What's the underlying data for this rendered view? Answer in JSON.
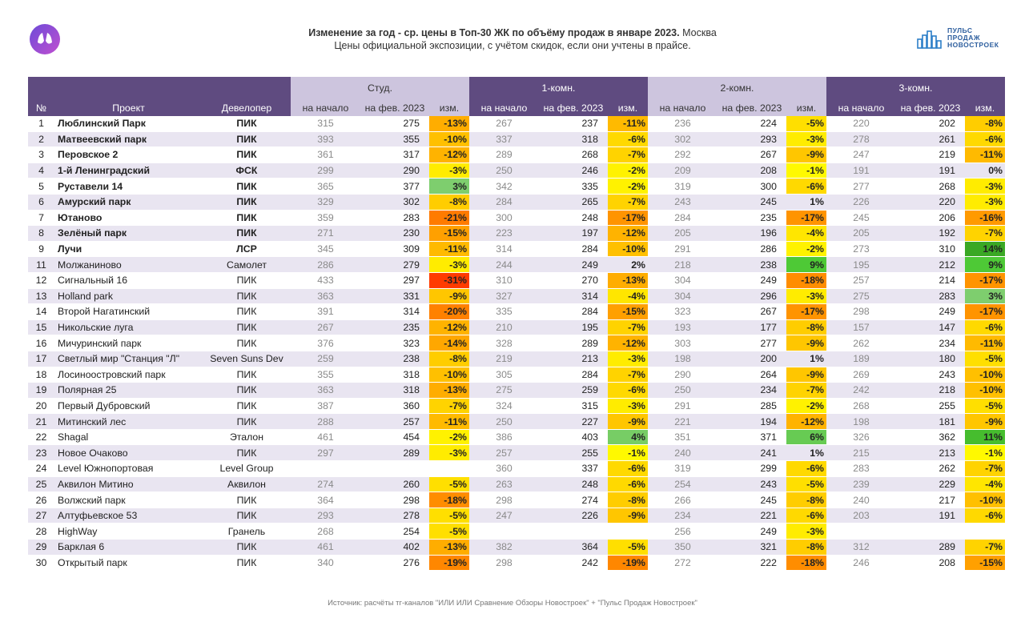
{
  "header": {
    "title": "Изменение за год - ср. цены в Топ-30 ЖК по объёму продаж в январе 2023.",
    "title_city": "Москва",
    "subtitle": "Цены официальной экспозиции, с учётом скидок, если они учтены в прайсе.",
    "logo_text": [
      "ПУЛЬС",
      "ПРОДАЖ",
      "НОВОСТРОЕК"
    ]
  },
  "table": {
    "groups": [
      "Студ.",
      "1-комн.",
      "2-комн.",
      "3-комн."
    ],
    "columns": [
      "№",
      "Проект",
      "Девелопер",
      "на начало",
      "на фев. 2023",
      "изм.",
      "на начало",
      "на фев. 2023",
      "изм.",
      "на начало",
      "на фев. 2023",
      "изм.",
      "на начало",
      "на фев. 2023",
      "изм."
    ],
    "rows": [
      [
        "1",
        "Люблинский Парк",
        "ПИК",
        315,
        275,
        "-13%",
        267,
        237,
        "-11%",
        236,
        224,
        "-5%",
        220,
        202,
        "-8%"
      ],
      [
        "2",
        "Матвеевский парк",
        "ПИК",
        393,
        355,
        "-10%",
        337,
        318,
        "-6%",
        302,
        293,
        "-3%",
        278,
        261,
        "-6%"
      ],
      [
        "3",
        "Перовское 2",
        "ПИК",
        361,
        317,
        "-12%",
        289,
        268,
        "-7%",
        292,
        267,
        "-9%",
        247,
        219,
        "-11%"
      ],
      [
        "4",
        "1-й Ленинградский",
        "ФСК",
        299,
        290,
        "-3%",
        250,
        246,
        "-2%",
        209,
        208,
        "-1%",
        191,
        191,
        "0%"
      ],
      [
        "5",
        "Руставели 14",
        "ПИК",
        365,
        377,
        "3%",
        342,
        335,
        "-2%",
        319,
        300,
        "-6%",
        277,
        268,
        "-3%"
      ],
      [
        "6",
        "Амурский парк",
        "ПИК",
        329,
        302,
        "-8%",
        284,
        265,
        "-7%",
        243,
        245,
        "1%",
        226,
        220,
        "-3%"
      ],
      [
        "7",
        "Ютаново",
        "ПИК",
        359,
        283,
        "-21%",
        300,
        248,
        "-17%",
        284,
        235,
        "-17%",
        245,
        206,
        "-16%"
      ],
      [
        "8",
        "Зелёный парк",
        "ПИК",
        271,
        230,
        "-15%",
        223,
        197,
        "-12%",
        205,
        196,
        "-4%",
        205,
        192,
        "-7%"
      ],
      [
        "9",
        "Лучи",
        "ЛСР",
        345,
        309,
        "-11%",
        314,
        284,
        "-10%",
        291,
        286,
        "-2%",
        273,
        310,
        "14%"
      ],
      [
        "11",
        "Молжаниново",
        "Самолет",
        286,
        279,
        "-3%",
        244,
        249,
        "2%",
        218,
        238,
        "9%",
        195,
        212,
        "9%"
      ],
      [
        "12",
        "Сигнальный 16",
        "ПИК",
        433,
        297,
        "-31%",
        310,
        270,
        "-13%",
        304,
        249,
        "-18%",
        257,
        214,
        "-17%"
      ],
      [
        "13",
        "Holland park",
        "ПИК",
        363,
        331,
        "-9%",
        327,
        314,
        "-4%",
        304,
        296,
        "-3%",
        275,
        283,
        "3%"
      ],
      [
        "14",
        "Второй Нагатинский",
        "ПИК",
        391,
        314,
        "-20%",
        335,
        284,
        "-15%",
        323,
        267,
        "-17%",
        298,
        249,
        "-17%"
      ],
      [
        "15",
        "Никольские луга",
        "ПИК",
        267,
        235,
        "-12%",
        210,
        195,
        "-7%",
        193,
        177,
        "-8%",
        157,
        147,
        "-6%"
      ],
      [
        "16",
        "Мичуринский парк",
        "ПИК",
        376,
        323,
        "-14%",
        328,
        289,
        "-12%",
        303,
        277,
        "-9%",
        262,
        234,
        "-11%"
      ],
      [
        "17",
        "Светлый мир \"Станция \"Л\"",
        "Seven Suns Dev",
        259,
        238,
        "-8%",
        219,
        213,
        "-3%",
        198,
        200,
        "1%",
        189,
        180,
        "-5%"
      ],
      [
        "18",
        "Лосиноостровский парк",
        "ПИК",
        355,
        318,
        "-10%",
        305,
        284,
        "-7%",
        290,
        264,
        "-9%",
        269,
        243,
        "-10%"
      ],
      [
        "19",
        "Полярная 25",
        "ПИК",
        363,
        318,
        "-13%",
        275,
        259,
        "-6%",
        250,
        234,
        "-7%",
        242,
        218,
        "-10%"
      ],
      [
        "20",
        "Первый Дубровский",
        "ПИК",
        387,
        360,
        "-7%",
        324,
        315,
        "-3%",
        291,
        285,
        "-2%",
        268,
        255,
        "-5%"
      ],
      [
        "21",
        "Митинский лес",
        "ПИК",
        288,
        257,
        "-11%",
        250,
        227,
        "-9%",
        221,
        194,
        "-12%",
        198,
        181,
        "-9%"
      ],
      [
        "22",
        "Shagal",
        "Эталон",
        461,
        454,
        "-2%",
        386,
        403,
        "4%",
        351,
        371,
        "6%",
        326,
        362,
        "11%"
      ],
      [
        "23",
        "Новое Очаково",
        "ПИК",
        297,
        289,
        "-3%",
        257,
        255,
        "-1%",
        240,
        241,
        "1%",
        215,
        213,
        "-1%"
      ],
      [
        "24",
        "Level Южнопортовая",
        "Level Group",
        null,
        null,
        null,
        360,
        337,
        "-6%",
        319,
        299,
        "-6%",
        283,
        262,
        "-7%"
      ],
      [
        "25",
        "Аквилон Митино",
        "Аквилон",
        274,
        260,
        "-5%",
        263,
        248,
        "-6%",
        254,
        243,
        "-5%",
        239,
        229,
        "-4%"
      ],
      [
        "26",
        "Волжский парк",
        "ПИК",
        364,
        298,
        "-18%",
        298,
        274,
        "-8%",
        266,
        245,
        "-8%",
        240,
        217,
        "-10%"
      ],
      [
        "27",
        "Алтуфьевское 53",
        "ПИК",
        293,
        278,
        "-5%",
        247,
        226,
        "-9%",
        234,
        221,
        "-6%",
        203,
        191,
        "-6%"
      ],
      [
        "28",
        "HighWay",
        "Гранель",
        268,
        254,
        "-5%",
        null,
        null,
        null,
        256,
        249,
        "-3%",
        null,
        null,
        null
      ],
      [
        "29",
        "Барклая 6",
        "ПИК",
        461,
        402,
        "-13%",
        382,
        364,
        "-5%",
        350,
        321,
        "-8%",
        312,
        289,
        "-7%"
      ],
      [
        "30",
        "Открытый парк",
        "ПИК",
        340,
        276,
        "-19%",
        298,
        242,
        "-19%",
        272,
        222,
        "-18%",
        246,
        208,
        "-15%"
      ]
    ]
  },
  "footer": {
    "source": "Источник: расчёты тг-каналов \"ИЛИ ИЛИ Сравнение Обзоры Новостроек\" + \"Пульс Продаж Новостроек\""
  }
}
